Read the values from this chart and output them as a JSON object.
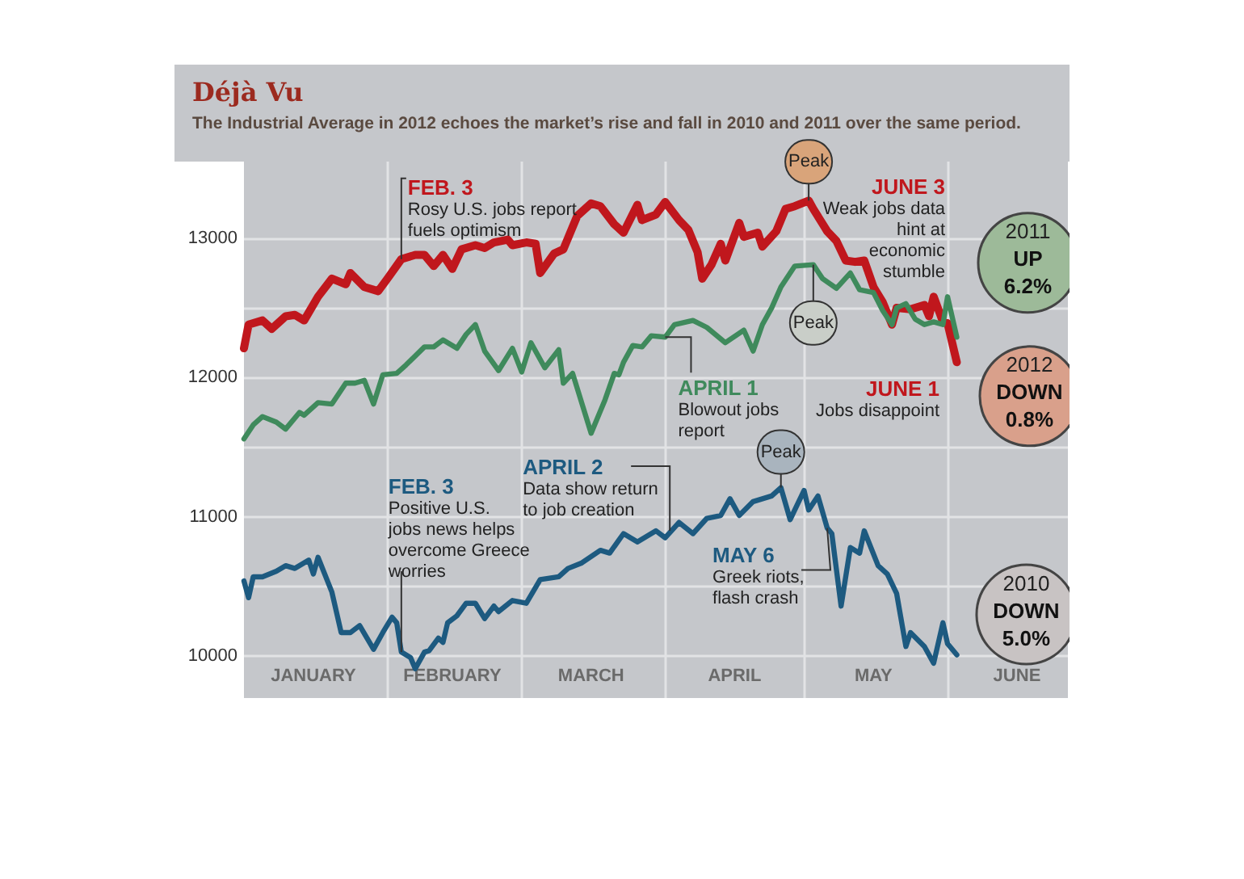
{
  "chart_data": {
    "type": "line",
    "title": "Déjà Vu",
    "subtitle": "The Industrial Average in 2012 echoes the market’s rise and fall in 2010 and 2011 over the same period.",
    "xlim": [
      "--01-01",
      "--06-27"
    ],
    "xticks": [
      {
        "value": "--01-16",
        "label": "JANUARY"
      },
      {
        "value": "--02-01",
        "label": null
      },
      {
        "value": "--02-15",
        "label": "FEBRUARY"
      },
      {
        "value": "--03-01",
        "label": null
      },
      {
        "value": "--03-16",
        "label": "MARCH"
      },
      {
        "value": "--04-01",
        "label": null
      },
      {
        "value": "--04-16",
        "label": "APRIL"
      },
      {
        "value": "--05-01",
        "label": null
      },
      {
        "value": "--05-16",
        "label": "MAY"
      },
      {
        "value": "--06-01",
        "label": null
      },
      {
        "value": "--06-16",
        "label": "JUNE"
      }
    ],
    "ylim": [
      9700,
      13550
    ],
    "yticks": [
      10000,
      {
        "value": 10500,
        "label": null
      },
      11000,
      {
        "value": 11500,
        "label": null
      },
      12000,
      {
        "value": 12500,
        "label": null
      },
      13000
    ],
    "grid": true,
    "marker": "none",
    "line_style": "solid",
    "series": [
      {
        "name": "2012",
        "color": "#c0171d",
        "x": [
          "--01-01",
          "--01-02",
          "--01-05",
          "--01-07",
          "--01-10",
          "--01-12",
          "--01-14",
          "--01-17",
          "--01-20",
          "--01-23",
          "--01-24",
          "--01-27",
          "--01-30",
          "--02-01",
          "--02-04",
          "--02-07",
          "--02-09",
          "--02-11",
          "--02-13",
          "--02-15",
          "--02-17",
          "--02-20",
          "--02-22",
          "--02-24",
          "--02-27",
          "--02-28",
          "--03-02",
          "--03-04",
          "--03-05",
          "--03-08",
          "--03-10",
          "--03-13",
          "--03-16",
          "--03-18",
          "--03-21",
          "--03-23",
          "--03-26",
          "--03-27",
          "--03-30",
          "--04-01",
          "--04-04",
          "--04-06",
          "--04-08",
          "--04-09",
          "--04-11",
          "--04-13",
          "--04-14",
          "--04-17",
          "--04-18",
          "--04-21",
          "--04-22",
          "--04-25",
          "--04-27",
          "--04-29",
          "--05-02",
          "--05-03",
          "--05-06",
          "--05-08",
          "--05-10",
          "--05-12",
          "--05-14",
          "--05-16",
          "--05-18",
          "--05-20",
          "--05-21",
          "--05-24",
          "--05-27",
          "--05-28",
          "--05-29",
          "--05-31",
          "--06-01",
          "--06-03"
        ],
        "values": [
          12210,
          12380,
          12410,
          12350,
          12440,
          12450,
          12410,
          12580,
          12710,
          12670,
          12750,
          12650,
          12620,
          12710,
          12850,
          12880,
          12880,
          12800,
          12880,
          12780,
          12920,
          12950,
          12930,
          12970,
          12990,
          12950,
          12970,
          12960,
          12750,
          12890,
          12920,
          13160,
          13250,
          13230,
          13100,
          13040,
          13240,
          13130,
          13170,
          13260,
          13130,
          13060,
          12900,
          12710,
          12810,
          12960,
          12840,
          13110,
          13010,
          13040,
          12940,
          13050,
          13210,
          13230,
          13270,
          13210,
          13050,
          12980,
          12840,
          12830,
          12840,
          12650,
          12540,
          12380,
          12500,
          12490,
          12520,
          12440,
          12580,
          12400,
          12390,
          12110
        ]
      },
      {
        "name": "2011",
        "color": "#3f8a5c",
        "x": [
          "--01-01",
          "--01-03",
          "--01-05",
          "--01-08",
          "--01-10",
          "--01-13",
          "--01-14",
          "--01-17",
          "--01-20",
          "--01-23",
          "--01-25",
          "--01-27",
          "--01-29",
          "--01-31",
          "--02-03",
          "--02-05",
          "--02-09",
          "--02-11",
          "--02-13",
          "--02-16",
          "--02-18",
          "--02-20",
          "--02-22",
          "--02-25",
          "--02-28",
          "--03-01",
          "--03-03",
          "--03-06",
          "--03-09",
          "--03-10",
          "--03-12",
          "--03-16",
          "--03-19",
          "--03-21",
          "--03-22",
          "--03-23",
          "--03-25",
          "--03-27",
          "--03-29",
          "--04-01",
          "--04-03",
          "--04-07",
          "--04-10",
          "--04-14",
          "--04-18",
          "--04-20",
          "--04-22",
          "--04-24",
          "--04-26",
          "--04-29",
          "--05-03",
          "--05-05",
          "--05-08",
          "--05-11",
          "--05-13",
          "--05-16",
          "--05-18",
          "--05-20",
          "--05-21",
          "--05-23",
          "--05-25",
          "--05-27",
          "--05-29",
          "--05-31",
          "--06-01",
          "--06-03"
        ],
        "values": [
          11560,
          11660,
          11720,
          11680,
          11630,
          11750,
          11730,
          11820,
          11810,
          11960,
          11960,
          11980,
          11810,
          12020,
          12030,
          12090,
          12220,
          12220,
          12270,
          12210,
          12310,
          12380,
          12190,
          12050,
          12210,
          12040,
          12250,
          12070,
          12200,
          11960,
          12030,
          11600,
          11840,
          12030,
          12020,
          12110,
          12230,
          12220,
          12300,
          12290,
          12380,
          12410,
          12360,
          12250,
          12340,
          12190,
          12380,
          12500,
          12650,
          12800,
          12810,
          12710,
          12640,
          12750,
          12630,
          12610,
          12480,
          12380,
          12500,
          12530,
          12420,
          12380,
          12400,
          12380,
          12580,
          12290
        ]
      },
      {
        "name": "2010",
        "color": "#1d5a80",
        "x": [
          "--01-01",
          "--01-02",
          "--01-03",
          "--01-05",
          "--01-08",
          "--01-10",
          "--01-12",
          "--01-15",
          "--01-16",
          "--01-17",
          "--01-20",
          "--01-22",
          "--01-24",
          "--01-26",
          "--01-29",
          "--01-31",
          "--02-02",
          "--02-03",
          "--02-04",
          "--02-06",
          "--02-07",
          "--02-09",
          "--02-10",
          "--02-12",
          "--02-13",
          "--02-14",
          "--02-16",
          "--02-18",
          "--02-20",
          "--02-22",
          "--02-24",
          "--02-25",
          "--02-28",
          "--03-02",
          "--03-05",
          "--03-09",
          "--03-11",
          "--03-14",
          "--03-18",
          "--03-20",
          "--03-23",
          "--03-26",
          "--03-30",
          "--04-01",
          "--04-04",
          "--04-07",
          "--04-10",
          "--04-13",
          "--04-15",
          "--04-17",
          "--04-20",
          "--04-24",
          "--04-26",
          "--04-28",
          "--05-01",
          "--05-02",
          "--05-04",
          "--05-06",
          "--05-07",
          "--05-09",
          "--05-11",
          "--05-13",
          "--05-14",
          "--05-17",
          "--05-19",
          "--05-21",
          "--05-23",
          "--05-24",
          "--05-27",
          "--05-29",
          "--05-31",
          "--06-01",
          "--06-03"
        ],
        "values": [
          10540,
          10420,
          10570,
          10570,
          10610,
          10650,
          10630,
          10690,
          10590,
          10710,
          10460,
          10170,
          10170,
          10220,
          10050,
          10170,
          10280,
          10240,
          10030,
          9990,
          9910,
          10030,
          10040,
          10130,
          10100,
          10240,
          10290,
          10380,
          10380,
          10270,
          10360,
          10320,
          10400,
          10380,
          10550,
          10570,
          10630,
          10670,
          10760,
          10740,
          10880,
          10820,
          10900,
          10850,
          10960,
          10880,
          10990,
          11010,
          11130,
          11010,
          11110,
          11150,
          11210,
          10980,
          11190,
          11050,
          11150,
          10920,
          10880,
          10360,
          10780,
          10740,
          10900,
          10650,
          10590,
          10450,
          10070,
          10170,
          10070,
          9950,
          10240,
          10090,
          10010
        ]
      }
    ],
    "annotations": [
      {
        "text": "FEB. 3\nRosy U.S. jobs report\nfuels optimism",
        "x": "--02-04",
        "y": 12850
      },
      "JUNE 3\nWeak jobs data\nhint at\neconomic\nstumble",
      {
        "text": "APRIL 1\nBlowout jobs\nreport",
        "x": "--04-01",
        "y": 12290
      },
      {
        "text": "JUNE 1\nJobs disappoint",
        "x": "--06-01",
        "y": 12390
      },
      {
        "text": "FEB. 3\nPositive U.S.\njobs news helps\novercome Greece\nworries",
        "x": "--02-04",
        "y": 10030
      },
      {
        "text": "APRIL 2\nData show return\nto job creation",
        "x": "--04-02",
        "y": 10900
      },
      {
        "text": "MAY 6\nGreek riots,\nflash crash",
        "x": "--05-06",
        "y": 10920
      },
      {
        "text": "Peak",
        "x": "--05-02",
        "y": 13270
      },
      {
        "text": "Peak",
        "x": "--05-03",
        "y": 12810
      },
      {
        "text": "Peak",
        "x": "--04-26",
        "y": 11210
      },
      {
        "text": "UP\n6.2%",
        "x": "--06-03",
        "y": 12290
      },
      {
        "text": "DOWN\n0.8%",
        "x": "--06-03",
        "y": 12110
      },
      {
        "text": "DOWN\n5.0%",
        "x": "--06-03",
        "y": 10010
      }
    ]
  }
}
